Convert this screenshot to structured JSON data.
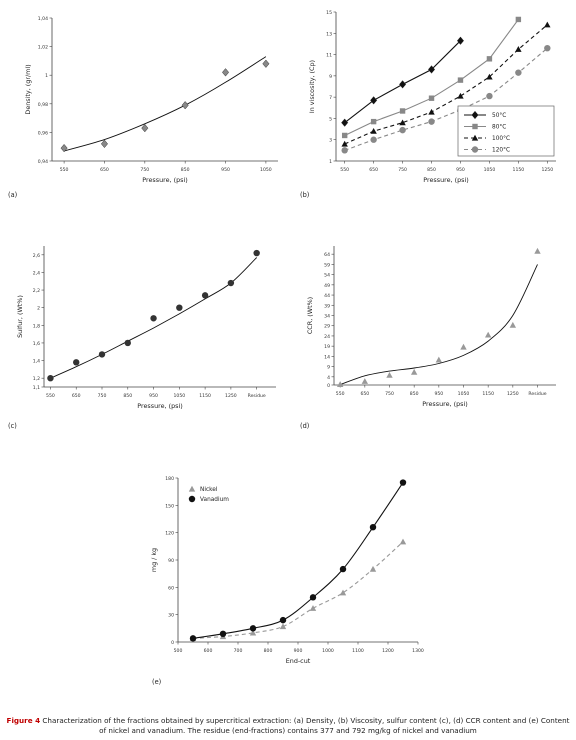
{
  "caption": {
    "label": "Figure 4",
    "text": "Characterization of the fractions obtained by supercritical extraction: (a) Density, (b) Viscosity, sulfur content (c), (d) CCR content and (e) Content of nickel and vanadium. The residue (end-fractions) contains 377 and 792 mg/kg of nickel and vanadium"
  },
  "chart_data": [
    {
      "id": "a",
      "panel_label": "(a)",
      "type": "scatter",
      "xlabel": "Pressure, (psi)",
      "ylabel": "Density, (gr/ml)",
      "xticks": [
        "550",
        "650",
        "750",
        "850",
        "950",
        "1050"
      ],
      "xlim": [
        520,
        1080
      ],
      "ylim": [
        0.94,
        1.04
      ],
      "yticks": [
        "0,94",
        "0,96",
        "0,98",
        "1",
        "1,02",
        "1,04"
      ],
      "yticks_values": [
        0.94,
        0.96,
        0.98,
        1.0,
        1.02,
        1.04
      ],
      "series": [
        {
          "marker": "diamond",
          "color": "#888888",
          "x": [
            550,
            650,
            750,
            850,
            950,
            1050
          ],
          "y": [
            0.949,
            0.952,
            0.963,
            0.979,
            1.002,
            1.008
          ]
        }
      ],
      "trend": {
        "x": [
          550,
          650,
          750,
          850,
          950,
          1050
        ],
        "y": [
          0.947,
          0.955,
          0.966,
          0.979,
          0.995,
          1.013
        ]
      }
    },
    {
      "id": "b",
      "panel_label": "(b)",
      "type": "line",
      "xlabel": "Pressure, (psi)",
      "ylabel": "ln viscosity, (Cp)",
      "xticks": [
        "550",
        "650",
        "750",
        "850",
        "950",
        "1050",
        "1150",
        "1250"
      ],
      "xlim": [
        520,
        1280
      ],
      "ylim": [
        1,
        15
      ],
      "yticks": [
        "1",
        "3",
        "5",
        "7",
        "9",
        "11",
        "13",
        "15"
      ],
      "yticks_values": [
        1,
        3,
        5,
        7,
        9,
        11,
        13,
        15
      ],
      "legend": "bottom-right",
      "series": [
        {
          "name": "50°C",
          "marker": "diamond",
          "color": "#111111",
          "dash": "",
          "x": [
            550,
            650,
            750,
            850,
            950
          ],
          "y": [
            4.6,
            6.7,
            8.2,
            9.6,
            12.3
          ]
        },
        {
          "name": "80°C",
          "marker": "square",
          "color": "#888888",
          "dash": "",
          "x": [
            550,
            650,
            750,
            850,
            950,
            1050,
            1150
          ],
          "y": [
            3.4,
            4.7,
            5.7,
            6.9,
            8.6,
            10.6,
            14.3
          ]
        },
        {
          "name": "100°C",
          "marker": "triangle",
          "color": "#111111",
          "dash": "4,3",
          "x": [
            550,
            650,
            750,
            850,
            950,
            1050,
            1150,
            1250
          ],
          "y": [
            2.6,
            3.8,
            4.6,
            5.6,
            7.1,
            8.9,
            11.5,
            13.8
          ]
        },
        {
          "name": "120°C",
          "marker": "circle",
          "color": "#888888",
          "dash": "4,3",
          "x": [
            550,
            650,
            750,
            850,
            950,
            1050,
            1150,
            1250
          ],
          "y": [
            2.0,
            3.0,
            3.9,
            4.7,
            5.8,
            7.1,
            9.3,
            11.6
          ]
        }
      ]
    },
    {
      "id": "c",
      "panel_label": "(c)",
      "type": "scatter",
      "xlabel": "Pressure, (psi)",
      "ylabel": "Sulfur, (Wt%)",
      "xticks": [
        "550",
        "650",
        "750",
        "850",
        "950",
        "1050",
        "1150",
        "1250",
        "Residue"
      ],
      "xlim": [
        0,
        9
      ],
      "ylim": [
        1.1,
        2.7
      ],
      "yticks": [
        "1,1",
        "1,2",
        "1,4",
        "1,6",
        "1,8",
        "2",
        "2,2",
        "2,4",
        "2,6"
      ],
      "yticks_values": [
        1.1,
        1.2,
        1.4,
        1.6,
        1.8,
        2.0,
        2.2,
        2.4,
        2.6
      ],
      "series": [
        {
          "marker": "circle",
          "color": "#333333",
          "x": [
            0.25,
            1.25,
            2.25,
            3.25,
            4.25,
            5.25,
            6.25,
            7.25,
            8.25
          ],
          "y": [
            1.2,
            1.38,
            1.47,
            1.6,
            1.88,
            2.0,
            2.14,
            2.28,
            2.62
          ]
        }
      ],
      "trend": {
        "x": [
          0.25,
          1.25,
          2.25,
          3.25,
          4.25,
          5.25,
          6.25,
          7.25,
          8.25
        ],
        "y": [
          1.2,
          1.33,
          1.47,
          1.62,
          1.77,
          1.93,
          2.1,
          2.28,
          2.57
        ]
      }
    },
    {
      "id": "d",
      "panel_label": "(d)",
      "type": "scatter",
      "xlabel": "Pressure, (psi)",
      "ylabel": "CCR, (Wt%)",
      "xticks": [
        "550",
        "650",
        "750",
        "850",
        "950",
        "1050",
        "1150",
        "1250",
        "Residue"
      ],
      "xlim": [
        0,
        9
      ],
      "ylim": [
        0,
        68
      ],
      "yticks": [
        "0",
        "4",
        "9",
        "14",
        "19",
        "24",
        "29",
        "34",
        "39",
        "44",
        "49",
        "54",
        "59",
        "64"
      ],
      "yticks_values": [
        0,
        4,
        9,
        14,
        19,
        24,
        29,
        34,
        39,
        44,
        49,
        54,
        59,
        64
      ],
      "series": [
        {
          "marker": "triangle",
          "color": "#999999",
          "x": [
            0.25,
            1.25,
            2.25,
            3.25,
            4.25,
            5.25,
            6.25,
            7.25,
            8.25
          ],
          "y": [
            0.3,
            1.8,
            4.8,
            6.3,
            12.3,
            18.6,
            24.5,
            29.3,
            65.5
          ]
        }
      ],
      "trend": {
        "x": [
          0.25,
          1.25,
          2.25,
          3.25,
          4.25,
          5.25,
          6.25,
          7.25,
          8.25
        ],
        "y": [
          0.2,
          4.5,
          6.8,
          8.3,
          10.5,
          14.5,
          21.5,
          34,
          59
        ]
      }
    },
    {
      "id": "e",
      "panel_label": "(e)",
      "type": "line",
      "xlabel": "End-cut",
      "ylabel": "mg / kg",
      "xticks": [
        "500",
        "600",
        "700",
        "800",
        "900",
        "1000",
        "1100",
        "1200",
        "1300"
      ],
      "xticks_values": [
        500,
        600,
        700,
        800,
        900,
        1000,
        1100,
        1200,
        1300
      ],
      "xlim": [
        500,
        1300
      ],
      "ylim": [
        0,
        180
      ],
      "yticks": [
        "0",
        "30",
        "60",
        "90",
        "120",
        "150",
        "180"
      ],
      "yticks_values": [
        0,
        30,
        60,
        90,
        120,
        150,
        180
      ],
      "legend": "top-left",
      "series": [
        {
          "name": "Nickel",
          "marker": "triangle",
          "color": "#999999",
          "dash": "4,3",
          "x": [
            550,
            650,
            750,
            850,
            950,
            1050,
            1150,
            1250
          ],
          "y": [
            4,
            6,
            10,
            17,
            37,
            54,
            80,
            110
          ]
        },
        {
          "name": "Vanadium",
          "marker": "circle",
          "color": "#111111",
          "dash": "",
          "x": [
            550,
            650,
            750,
            850,
            950,
            1050,
            1150,
            1250
          ],
          "y": [
            4,
            9,
            15,
            24,
            49,
            80,
            126,
            175
          ]
        }
      ]
    }
  ]
}
